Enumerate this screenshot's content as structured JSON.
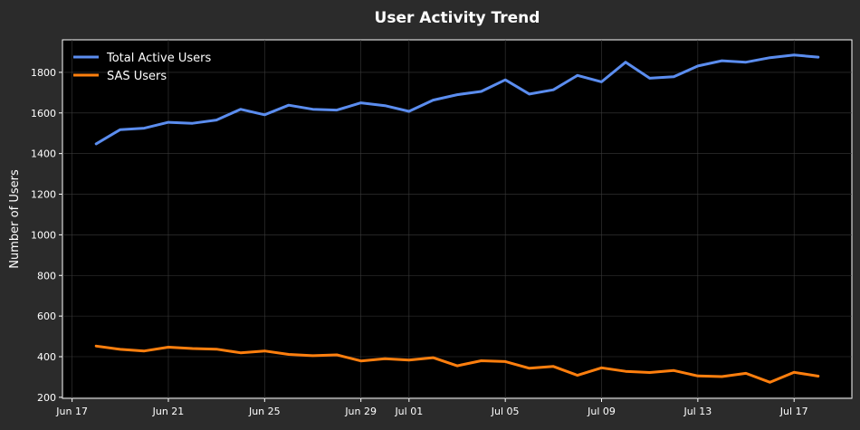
{
  "chart_data": {
    "type": "line",
    "title": "User Activity Trend",
    "xlabel": "",
    "ylabel": "Number of Users",
    "x_ticks": [
      "Jun 17",
      "Jun 21",
      "Jun 25",
      "Jun 29",
      "Jul 01",
      "Jul 05",
      "Jul 09",
      "Jul 13",
      "Jul 17"
    ],
    "x": [
      "Jun 18",
      "Jun 19",
      "Jun 20",
      "Jun 21",
      "Jun 22",
      "Jun 23",
      "Jun 24",
      "Jun 25",
      "Jun 26",
      "Jun 27",
      "Jun 28",
      "Jun 29",
      "Jun 30",
      "Jul 01",
      "Jul 02",
      "Jul 03",
      "Jul 04",
      "Jul 05",
      "Jul 06",
      "Jul 07",
      "Jul 08",
      "Jul 09",
      "Jul 10",
      "Jul 11",
      "Jul 12",
      "Jul 13",
      "Jul 14",
      "Jul 15",
      "Jul 16",
      "Jul 17",
      "Jul 18"
    ],
    "series": [
      {
        "name": "Total Active Users",
        "color": "#5b8def",
        "values": [
          1448,
          1518,
          1525,
          1554,
          1549,
          1565,
          1618,
          1591,
          1638,
          1618,
          1614,
          1650,
          1636,
          1608,
          1663,
          1690,
          1706,
          1763,
          1693,
          1714,
          1785,
          1753,
          1850,
          1771,
          1778,
          1831,
          1857,
          1850,
          1872,
          1885,
          1875
        ]
      },
      {
        "name": "SAS Users",
        "color": "#ff7f0e",
        "values": [
          452,
          436,
          428,
          447,
          440,
          437,
          419,
          428,
          411,
          405,
          409,
          379,
          390,
          383,
          395,
          355,
          380,
          376,
          343,
          352,
          308,
          345,
          328,
          322,
          332,
          305,
          302,
          318,
          274,
          323,
          304
        ]
      }
    ],
    "y_ticks": [
      200,
      400,
      600,
      800,
      1000,
      1200,
      1400,
      1600,
      1800
    ],
    "ylim": [
      195,
      1960
    ],
    "grid": true,
    "legend_position": "top-left",
    "background": "#000000",
    "figure_background": "#2b2b2b"
  }
}
